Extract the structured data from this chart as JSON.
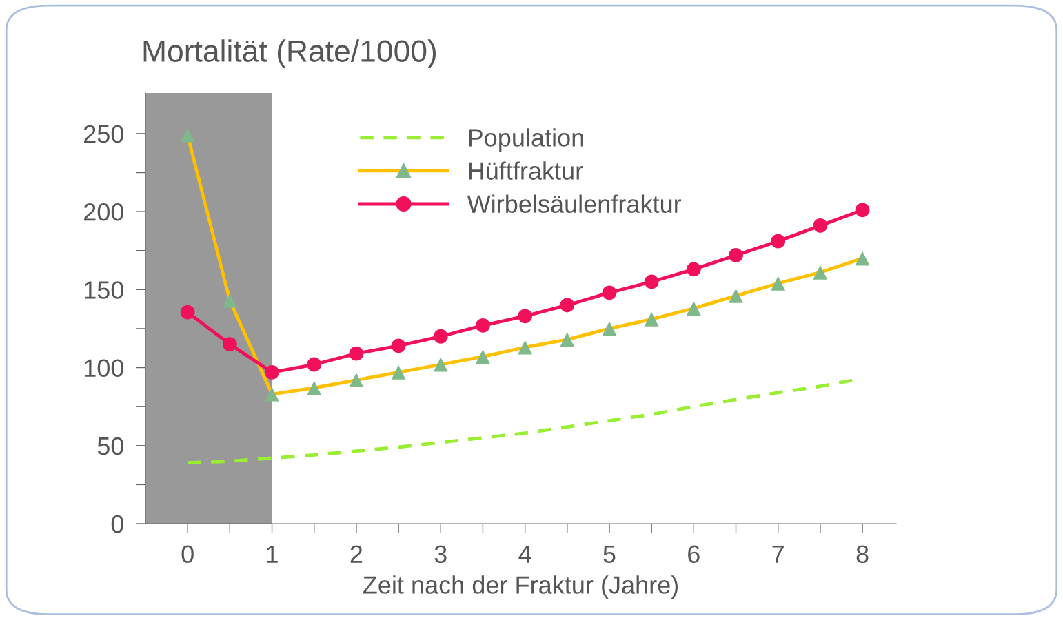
{
  "chart_data": {
    "type": "line",
    "title": "Mortalität (Rate/1000)",
    "xlabel": "Zeit nach der Fraktur (Jahre)",
    "x": [
      0,
      0.5,
      1,
      1.5,
      2,
      2.5,
      3,
      3.5,
      4,
      4.5,
      5,
      5.5,
      6,
      6.5,
      7,
      7.5,
      8
    ],
    "series": [
      {
        "name": "Population",
        "color": "#99ee33",
        "line_style": "dashed",
        "marker": "none",
        "values": [
          39,
          40,
          42,
          44,
          46.5,
          49,
          52,
          55,
          58,
          62,
          66,
          70,
          75,
          79.5,
          84,
          88,
          93
        ]
      },
      {
        "name": "Hüftfraktur",
        "color": "#ffc000",
        "marker": "triangle",
        "colors": [
          "#7fb88a",
          "#7fb88a",
          "#7fb88a",
          "#7fb88a",
          "#7fb88a",
          "#7fb88a",
          "#7fb88a",
          "#7fb88a",
          "#7fb88a",
          "#7fb88a",
          "#7fb88a",
          "#7fb88a",
          "#7fb88a",
          "#7fb88a",
          "#7fb88a",
          "#7fb88a",
          "#7fb88a"
        ],
        "values": [
          249,
          143,
          83,
          87,
          92,
          97,
          102,
          107,
          113,
          118,
          125,
          131,
          138,
          146,
          154,
          161,
          170
        ]
      },
      {
        "name": "Wirbelsäulenfraktur",
        "color": "#f0115a",
        "marker": "circle",
        "colors": [
          "#f0115a",
          "#f0115a",
          "#f0115a",
          "#f0115a",
          "#f0115a",
          "#f0115a",
          "#f0115a",
          "#f0115a",
          "#f0115a",
          "#f0115a",
          "#f0115a",
          "#f0115a",
          "#f0115a",
          "#f0115a",
          "#f0115a",
          "#f0115a",
          "#f0115a"
        ],
        "values": [
          135.5,
          115,
          97,
          102,
          109,
          114,
          120,
          127,
          133,
          140,
          148,
          155,
          163,
          172,
          181,
          191,
          201
        ]
      }
    ],
    "xlim": [
      -0.5,
      8.4
    ],
    "ylim": [
      0,
      276
    ],
    "xticks": [
      0,
      {
        "value": 0.5,
        "label": null
      },
      1,
      {
        "value": 1.5,
        "label": null
      },
      2,
      {
        "value": 2.5,
        "label": null
      },
      3,
      {
        "value": 3.5,
        "label": null
      },
      4,
      {
        "value": 4.5,
        "label": null
      },
      5,
      {
        "value": 5.5,
        "label": null
      },
      6,
      {
        "value": 6.5,
        "label": null
      },
      7,
      {
        "value": 7.5,
        "label": null
      },
      8
    ],
    "yticks": [
      0,
      {
        "value": 25,
        "label": null
      },
      50,
      {
        "value": 75,
        "label": null
      },
      100,
      {
        "value": 125,
        "label": null
      },
      150,
      {
        "value": 175,
        "label": null
      },
      200,
      {
        "value": 225,
        "label": null
      },
      250
    ],
    "bands": [
      {
        "axis": "x",
        "from": -0.5,
        "to": 1,
        "color": "#999999"
      }
    ],
    "grid": false,
    "legend": "top"
  }
}
